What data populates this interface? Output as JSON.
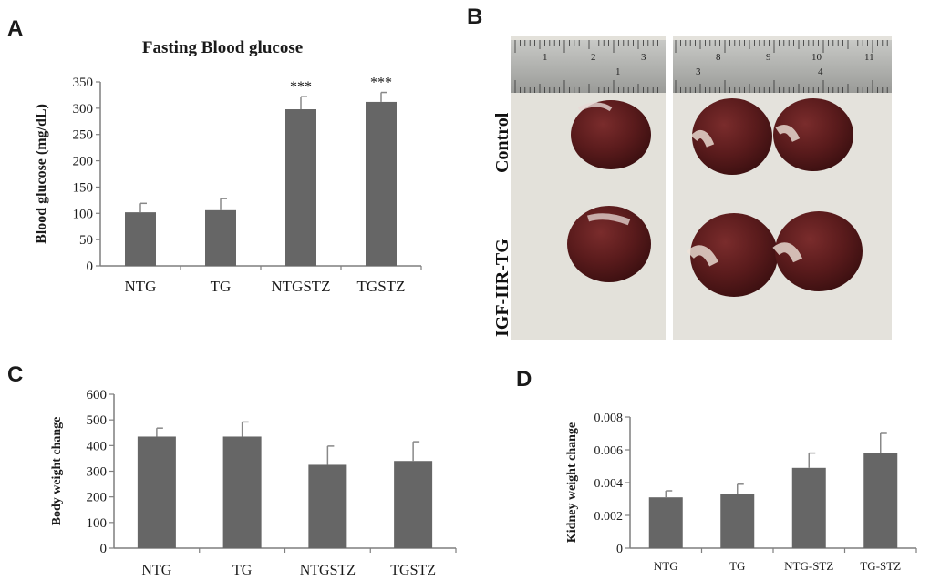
{
  "panel_labels": {
    "a": "A",
    "b": "B",
    "c": "C",
    "d": "D"
  },
  "colors": {
    "bar": "#666666",
    "axis": "#7f7f7f",
    "text": "#1a1a1a"
  },
  "chart_data": [
    {
      "id": "A",
      "type": "bar",
      "title": "Fasting Blood glucose",
      "xlabel": "",
      "ylabel": "Blood glucose (mg/dL)",
      "categories": [
        "NTG",
        "TG",
        "NTGSTZ",
        "TGSTZ"
      ],
      "values": [
        102,
        106,
        298,
        312
      ],
      "errors": [
        17,
        22,
        24,
        18
      ],
      "annotations": [
        "",
        "",
        "***",
        "***"
      ],
      "ylim": [
        0,
        350
      ],
      "yticks": [
        "0",
        "50",
        "100",
        "150",
        "200",
        "250",
        "300",
        "350"
      ],
      "grid": false
    },
    {
      "id": "C",
      "type": "bar",
      "title": "",
      "xlabel": "",
      "ylabel": "Body weight change",
      "categories": [
        "NTG",
        "TG",
        "NTGSTZ",
        "TGSTZ"
      ],
      "values": [
        435,
        435,
        325,
        340
      ],
      "errors": [
        33,
        57,
        73,
        75
      ],
      "ylim": [
        0,
        600
      ],
      "yticks": [
        "0",
        "100",
        "200",
        "300",
        "400",
        "500",
        "600"
      ],
      "grid": false
    },
    {
      "id": "D",
      "type": "bar",
      "title": "",
      "xlabel": "",
      "ylabel": "Kidney weight change",
      "categories": [
        "NTG",
        "TG",
        "NTG-STZ",
        "TG-STZ"
      ],
      "values": [
        0.0031,
        0.0033,
        0.0049,
        0.0058
      ],
      "errors": [
        0.0004,
        0.0006,
        0.0009,
        0.0012
      ],
      "ylim": [
        0,
        0.008
      ],
      "yticks": [
        "0",
        "0.002",
        "0.004",
        "0.006",
        "0.008"
      ],
      "grid": false
    }
  ],
  "photo": {
    "row_labels": [
      "Control",
      "IGF-IIR-TG"
    ],
    "ruler_left_numbers": [
      "1",
      "2",
      "3",
      "1"
    ],
    "ruler_right_numbers": [
      "8",
      "9",
      "10",
      "11",
      "3",
      "4"
    ]
  }
}
